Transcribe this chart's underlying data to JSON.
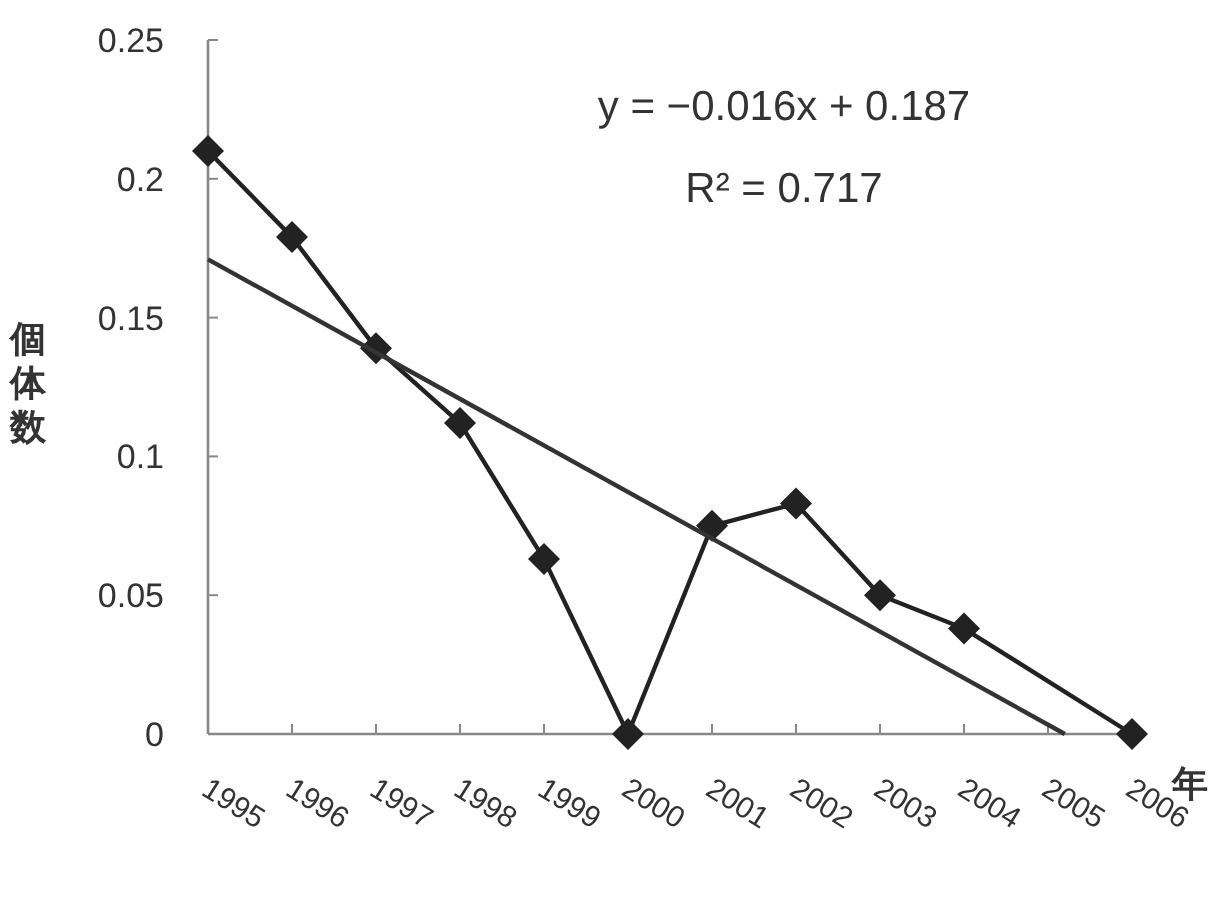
{
  "chart_data": {
    "type": "line",
    "ylabel": "個体数",
    "xlabel": "年",
    "annotations": [
      "y = −0.016x + 0.187",
      "R² = 0.717"
    ],
    "series": [
      {
        "color": "#222222",
        "marker": "diamond",
        "x": [
          1995,
          1996,
          1997,
          1998,
          1999,
          2000,
          2001,
          2002,
          2003,
          2004,
          2006
        ],
        "values": [
          0.21,
          0.179,
          0.139,
          0.112,
          0.063,
          0,
          0.075,
          0.083,
          0.05,
          0.038,
          0
        ]
      },
      {
        "color": "#333333",
        "marker": "none",
        "x": [
          1995,
          2005.2
        ],
        "values": [
          0.171,
          0
        ]
      }
    ],
    "xlim": [
      1995,
      2006
    ],
    "xticks": [
      1995,
      1996,
      1997,
      1998,
      1999,
      2000,
      2001,
      2002,
      2003,
      2004,
      2005,
      2006
    ],
    "ylim": [
      0,
      0.25
    ],
    "yticks": [
      0,
      0.05,
      0.1,
      0.15,
      0.2,
      0.25
    ],
    "grid": false,
    "line_style": "solid"
  }
}
